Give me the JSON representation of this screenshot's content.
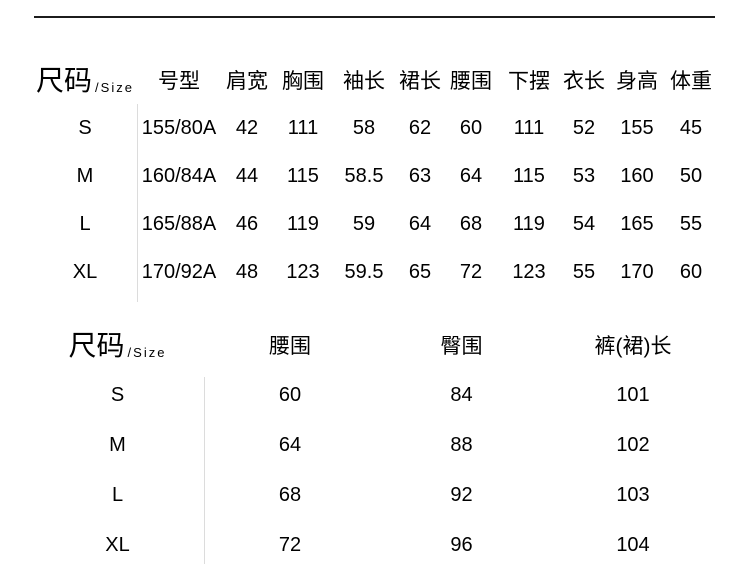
{
  "page": {
    "background": "#ffffff",
    "text_color": "#000000",
    "top_rule_color": "#1c1c1c",
    "divider_color": "#dcdcdc"
  },
  "garment_table": {
    "size_header": {
      "title": "尺码",
      "subtitle": "/Size"
    },
    "columns": [
      "号型",
      "肩宽",
      "胸围",
      "袖长",
      "裙长",
      "腰围",
      "下摆",
      "衣长",
      "身高",
      "体重"
    ],
    "rows": [
      {
        "size": "S",
        "cells": [
          "155/80A",
          "42",
          "111",
          "58",
          "62",
          "60",
          "111",
          "52",
          "155",
          "45"
        ]
      },
      {
        "size": "M",
        "cells": [
          "160/84A",
          "44",
          "115",
          "58.5",
          "63",
          "64",
          "115",
          "53",
          "160",
          "50"
        ]
      },
      {
        "size": "L",
        "cells": [
          "165/88A",
          "46",
          "119",
          "59",
          "64",
          "68",
          "119",
          "54",
          "165",
          "55"
        ]
      },
      {
        "size": "XL",
        "cells": [
          "170/92A",
          "48",
          "123",
          "59.5",
          "65",
          "72",
          "123",
          "55",
          "170",
          "60"
        ]
      }
    ]
  },
  "bottoms_table": {
    "size_header": {
      "title": "尺码",
      "subtitle": "/Size"
    },
    "columns": [
      "腰围",
      "臀围",
      "裤(裙)长"
    ],
    "rows": [
      {
        "size": "S",
        "cells": [
          "60",
          "84",
          "101"
        ]
      },
      {
        "size": "M",
        "cells": [
          "64",
          "88",
          "102"
        ]
      },
      {
        "size": "L",
        "cells": [
          "68",
          "92",
          "103"
        ]
      },
      {
        "size": "XL",
        "cells": [
          "72",
          "96",
          "104"
        ]
      }
    ]
  }
}
